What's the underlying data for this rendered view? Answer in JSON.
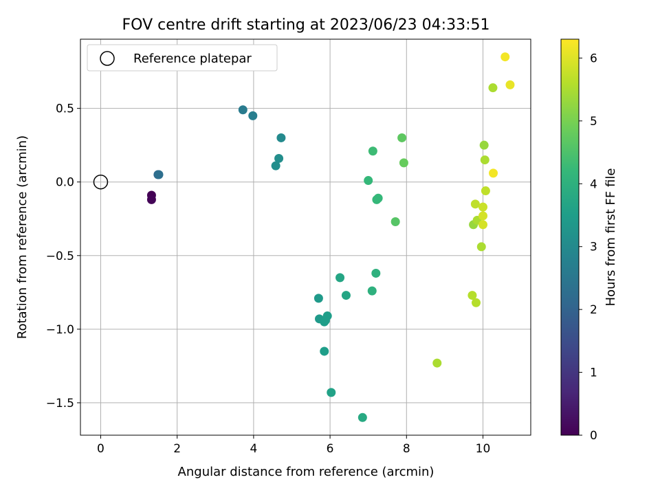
{
  "chart_data": {
    "type": "scatter",
    "title": "FOV centre drift starting at 2023/06/23 04:33:51",
    "xlabel": "Angular distance from reference (arcmin)",
    "ylabel": "Rotation from reference (arcmin)",
    "xlim": [
      -0.53,
      11.25
    ],
    "ylim": [
      -1.72,
      0.97
    ],
    "xticks": [
      0,
      2,
      4,
      6,
      8,
      10
    ],
    "xtick_labels": [
      "0",
      "2",
      "4",
      "6",
      "8",
      "10"
    ],
    "yticks": [
      -1.5,
      -1.0,
      -0.5,
      0.0,
      0.5
    ],
    "ytick_labels": [
      "−1.5",
      "−1.0",
      "−0.5",
      "0.0",
      "0.5"
    ],
    "grid": true,
    "legend": {
      "position": "top-left",
      "entries": [
        "Reference platepar"
      ]
    },
    "reference_point": {
      "x": 0.0,
      "y": 0.0
    },
    "colorbar": {
      "label": "Hours from first FF file",
      "range": [
        0,
        6.3
      ],
      "ticks": [
        0,
        1,
        2,
        3,
        4,
        5,
        6
      ],
      "tick_labels": [
        "0",
        "1",
        "2",
        "3",
        "4",
        "5",
        "6"
      ],
      "colormap": [
        "#440154",
        "#482878",
        "#3e4989",
        "#31688e",
        "#26828e",
        "#1f9e89",
        "#35b779",
        "#6ece58",
        "#b5de2b",
        "#fde725"
      ]
    },
    "points": [
      {
        "x": 1.33,
        "y": -0.09,
        "t": 0.0
      },
      {
        "x": 1.33,
        "y": -0.12,
        "t": 0.05
      },
      {
        "x": 1.5,
        "y": 0.05,
        "t": 2.1
      },
      {
        "x": 1.52,
        "y": 0.05,
        "t": 2.3
      },
      {
        "x": 3.72,
        "y": 0.49,
        "t": 2.6
      },
      {
        "x": 3.98,
        "y": 0.45,
        "t": 2.7
      },
      {
        "x": 4.72,
        "y": 0.3,
        "t": 3.0
      },
      {
        "x": 4.66,
        "y": 0.16,
        "t": 3.1
      },
      {
        "x": 4.58,
        "y": 0.11,
        "t": 3.1
      },
      {
        "x": 5.7,
        "y": -0.79,
        "t": 3.4
      },
      {
        "x": 5.72,
        "y": -0.93,
        "t": 3.4
      },
      {
        "x": 5.85,
        "y": -0.95,
        "t": 3.5
      },
      {
        "x": 5.88,
        "y": -0.94,
        "t": 3.5
      },
      {
        "x": 5.93,
        "y": -0.91,
        "t": 3.5
      },
      {
        "x": 5.85,
        "y": -1.15,
        "t": 3.5
      },
      {
        "x": 6.03,
        "y": -1.43,
        "t": 3.6
      },
      {
        "x": 6.26,
        "y": -0.65,
        "t": 3.7
      },
      {
        "x": 6.42,
        "y": -0.77,
        "t": 3.7
      },
      {
        "x": 6.85,
        "y": -1.6,
        "t": 3.8
      },
      {
        "x": 7.1,
        "y": -0.74,
        "t": 4.0
      },
      {
        "x": 7.2,
        "y": -0.62,
        "t": 4.0
      },
      {
        "x": 7.0,
        "y": 0.01,
        "t": 4.2
      },
      {
        "x": 7.12,
        "y": 0.21,
        "t": 4.3
      },
      {
        "x": 7.22,
        "y": -0.12,
        "t": 4.2
      },
      {
        "x": 7.26,
        "y": -0.11,
        "t": 4.2
      },
      {
        "x": 7.71,
        "y": -0.27,
        "t": 4.6
      },
      {
        "x": 7.88,
        "y": 0.3,
        "t": 4.7
      },
      {
        "x": 7.93,
        "y": 0.13,
        "t": 4.8
      },
      {
        "x": 8.8,
        "y": -1.23,
        "t": 5.5
      },
      {
        "x": 9.72,
        "y": -0.77,
        "t": 5.6
      },
      {
        "x": 9.82,
        "y": -0.82,
        "t": 5.6
      },
      {
        "x": 9.75,
        "y": -0.29,
        "t": 5.3
      },
      {
        "x": 9.85,
        "y": -0.26,
        "t": 5.5
      },
      {
        "x": 9.8,
        "y": -0.15,
        "t": 5.7
      },
      {
        "x": 9.96,
        "y": -0.44,
        "t": 5.5
      },
      {
        "x": 10.0,
        "y": -0.17,
        "t": 5.8
      },
      {
        "x": 10.0,
        "y": -0.23,
        "t": 5.9
      },
      {
        "x": 10.0,
        "y": -0.29,
        "t": 5.9
      },
      {
        "x": 10.03,
        "y": 0.25,
        "t": 5.3
      },
      {
        "x": 10.05,
        "y": 0.15,
        "t": 5.5
      },
      {
        "x": 10.07,
        "y": -0.06,
        "t": 5.7
      },
      {
        "x": 10.26,
        "y": 0.64,
        "t": 5.5
      },
      {
        "x": 10.27,
        "y": 0.06,
        "t": 6.2
      },
      {
        "x": 10.58,
        "y": 0.85,
        "t": 6.2
      },
      {
        "x": 10.71,
        "y": 0.66,
        "t": 6.1
      }
    ]
  }
}
